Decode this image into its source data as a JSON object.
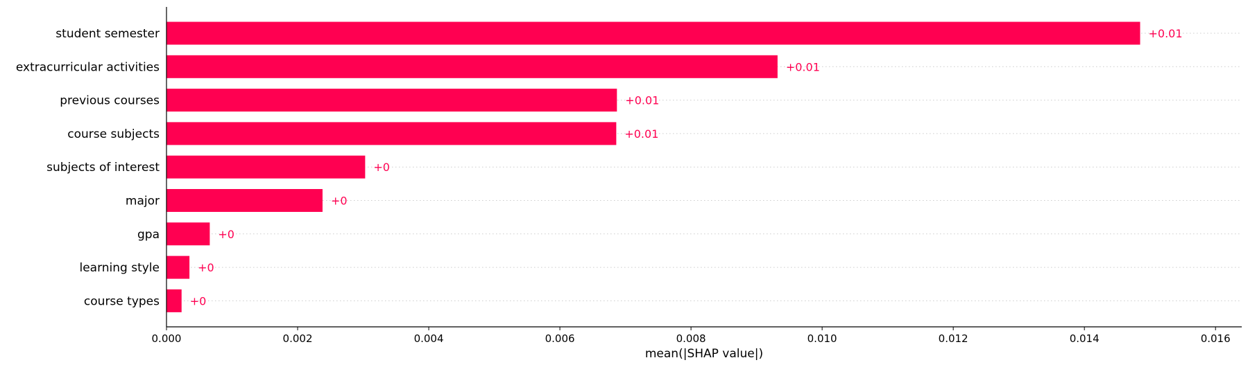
{
  "chart_data": {
    "type": "bar",
    "orientation": "horizontal",
    "categories": [
      "student semester",
      "extracurricular activities",
      "previous courses",
      "course subjects",
      "subjects of interest",
      "major",
      "gpa",
      "learning style",
      "course types"
    ],
    "values": [
      0.01485,
      0.00932,
      0.00687,
      0.00686,
      0.00303,
      0.00238,
      0.00066,
      0.00035,
      0.00023
    ],
    "value_labels": [
      "+0.01",
      "+0.01",
      "+0.01",
      "+0.01",
      "+0",
      "+0",
      "+0",
      "+0",
      "+0"
    ],
    "xlabel": "mean(|SHAP value|)",
    "xlim": [
      0,
      0.0164
    ],
    "xticks": [
      0,
      0.002,
      0.004,
      0.006,
      0.008,
      0.01,
      0.012,
      0.014,
      0.016
    ],
    "xtick_labels": [
      "0.000",
      "0.002",
      "0.004",
      "0.006",
      "0.008",
      "0.010",
      "0.012",
      "0.014",
      "0.016"
    ],
    "grid": "horizontal dotted row guides",
    "bar_color": "#ff0051",
    "label_color": "#ff0051"
  }
}
